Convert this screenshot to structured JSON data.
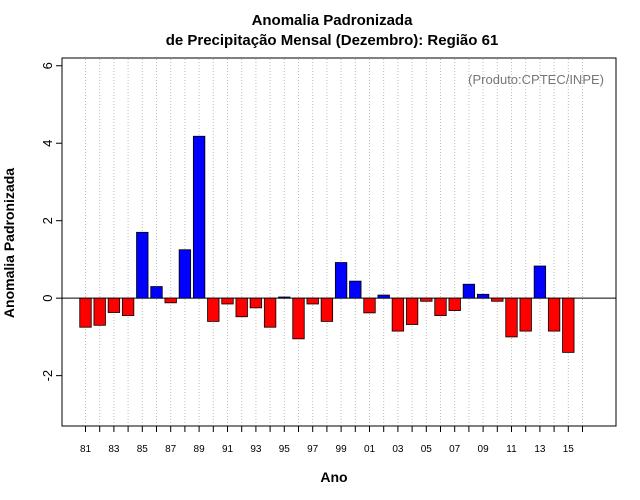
{
  "chart_data": {
    "type": "bar",
    "title": "Anomalia Padronizada",
    "subtitle": "de Precipitação Mensal (Dezembro): Região 61",
    "xlabel": "Ano",
    "ylabel": "Anomalia Padronizada",
    "credit": "(Produto:CPTEC/INPE)",
    "ylim": [
      -3.3,
      6.2
    ],
    "yticks": [
      -2,
      0,
      2,
      4,
      6
    ],
    "xtick_labels": [
      "81",
      "83",
      "85",
      "87",
      "89",
      "91",
      "93",
      "95",
      "97",
      "99",
      "01",
      "03",
      "05",
      "07",
      "09",
      "11",
      "13",
      "15"
    ],
    "categories": [
      "1981",
      "1982",
      "1983",
      "1984",
      "1985",
      "1986",
      "1987",
      "1988",
      "1989",
      "1990",
      "1991",
      "1992",
      "1993",
      "1994",
      "1995",
      "1996",
      "1997",
      "1998",
      "1999",
      "2000",
      "2001",
      "2002",
      "2003",
      "2004",
      "2005",
      "2006",
      "2007",
      "2008",
      "2009",
      "2010",
      "2011",
      "2012",
      "2013",
      "2014",
      "2015"
    ],
    "values": [
      -0.75,
      -0.7,
      -0.37,
      -0.45,
      1.7,
      0.3,
      -0.12,
      1.25,
      4.18,
      -0.6,
      -0.15,
      -0.48,
      -0.25,
      -0.75,
      0.03,
      -1.05,
      -0.15,
      -0.6,
      0.92,
      0.44,
      -0.38,
      0.08,
      -0.85,
      -0.68,
      -0.08,
      -0.45,
      -0.32,
      0.36,
      0.1,
      -0.08,
      -1.0,
      -0.85,
      0.83,
      -0.85,
      -1.4
    ],
    "colors": {
      "positive": "#0000ff",
      "negative": "#ff0000"
    },
    "grid": "vertical-dotted"
  }
}
